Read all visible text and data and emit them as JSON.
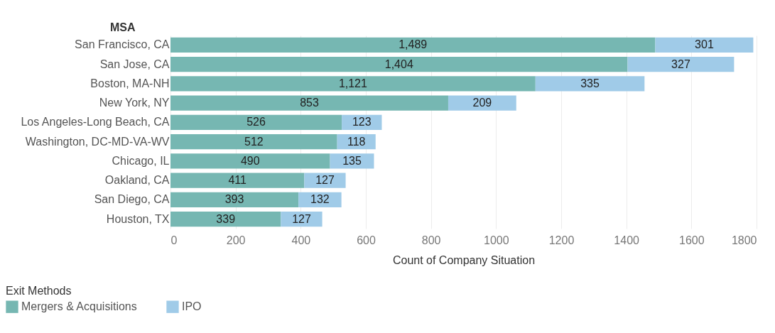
{
  "chart_data": {
    "type": "bar",
    "orientation": "horizontal",
    "stacked": true,
    "xlabel": "Count of Company Situation",
    "ylabel": "MSA",
    "legend_title": "Exit Methods",
    "categories": [
      "San Francisco, CA",
      "San Jose, CA",
      "Boston, MA-NH",
      "New York, NY",
      "Los Angeles-Long Beach, CA",
      "Washington, DC-MD-VA-WV",
      "Chicago, IL",
      "Oakland, CA",
      "San Diego, CA",
      "Houston, TX"
    ],
    "series": [
      {
        "name": "Mergers & Acquisitions",
        "color": "#76b7b2",
        "values": [
          1489,
          1404,
          1121,
          853,
          526,
          512,
          490,
          411,
          393,
          339
        ],
        "value_labels": [
          "1,489",
          "1,404",
          "1,121",
          "853",
          "526",
          "512",
          "490",
          "411",
          "393",
          "339"
        ]
      },
      {
        "name": "IPO",
        "color": "#a0cbe8",
        "values": [
          301,
          327,
          335,
          209,
          123,
          118,
          135,
          127,
          132,
          127
        ],
        "value_labels": [
          "301",
          "327",
          "335",
          "209",
          "123",
          "118",
          "135",
          "127",
          "132",
          "127"
        ]
      }
    ],
    "xlim": [
      0,
      1800
    ],
    "xticks": [
      0,
      200,
      400,
      600,
      800,
      1000,
      1200,
      1400,
      1600,
      1800
    ],
    "grid": "x",
    "legend": "bottom left"
  }
}
